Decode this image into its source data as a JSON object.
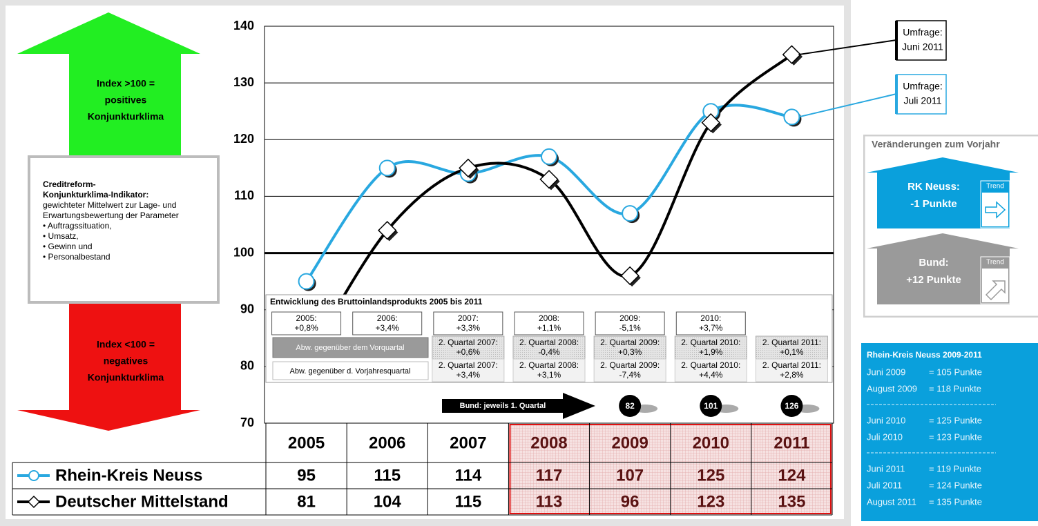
{
  "chart_data": {
    "type": "line",
    "categories": [
      "2005",
      "2006",
      "2007",
      "2008",
      "2009",
      "2010",
      "2011"
    ],
    "series": [
      {
        "name": "Rhein-Kreis Neuss",
        "color": "#29a8e0",
        "marker": "circle",
        "values": [
          95,
          115,
          114,
          117,
          107,
          125,
          124
        ]
      },
      {
        "name": "Deutscher Mittelstand",
        "color": "#000000",
        "marker": "diamond",
        "values": [
          81,
          104,
          115,
          113,
          96,
          123,
          135
        ]
      }
    ],
    "ylim": [
      70,
      140
    ],
    "yticks": [
      70,
      80,
      90,
      100,
      110,
      120,
      130,
      140
    ],
    "grid": true,
    "baseline": 100,
    "annotations": [
      {
        "lines": [
          "Umfrage:",
          "Juni 2011"
        ],
        "color": "#000000"
      },
      {
        "lines": [
          "Umfrage:",
          "Juli 2011"
        ],
        "color": "#29a8e0"
      }
    ]
  },
  "zones": {
    "positive": [
      "Index >100 =",
      "positives",
      "Konjunkturklima"
    ],
    "negative": [
      "Index <100 =",
      "negatives",
      "Konjunkturklima"
    ]
  },
  "info_box": {
    "title": [
      "Creditreform-",
      "Konjunkturklima-Indikator:"
    ],
    "lines": [
      "gewichteter Mittelwert zur Lage- und",
      "Erwartungsbewertung der Parameter",
      "• Auftragssituation,",
      "• Umsatz,",
      "• Gewinn und",
      "• Personalbestand"
    ]
  },
  "gdp": {
    "title": "Entwicklung des Bruttoinlandsprodukts 2005 bis 2011",
    "annual": [
      [
        "2005:",
        "+0,8%"
      ],
      [
        "2006:",
        "+3,4%"
      ],
      [
        "2007:",
        "+3,3%"
      ],
      [
        "2008:",
        "+1,1%"
      ],
      [
        "2009:",
        "-5,1%"
      ],
      [
        "2010:",
        "+3,7%"
      ]
    ],
    "quarter_label": "Abw. gegenüber dem Vorquartal",
    "yoy_label": "Abw. gegenüber d. Vorjahresquartal",
    "quarter": [
      [
        "2. Quartal 2007:",
        "+0,6%"
      ],
      [
        "2. Quartal 2008:",
        "-0,4%"
      ],
      [
        "2. Quartal 2009:",
        "+0,3%"
      ],
      [
        "2. Quartal 2010:",
        "+1,9%"
      ],
      [
        "2. Quartal 2011:",
        "+0,1%"
      ]
    ],
    "yoy": [
      [
        "2. Quartal 2007:",
        "+3,4%"
      ],
      [
        "2. Quartal 2008:",
        "+3,1%"
      ],
      [
        "2. Quartal 2009:",
        "-7,4%"
      ],
      [
        "2. Quartal 2010:",
        "+4,4%"
      ],
      [
        "2. Quartal 2011:",
        "+2,8%"
      ]
    ]
  },
  "bund": {
    "label": "Bund: jeweils 1. Quartal",
    "values": [
      82,
      101,
      126
    ]
  },
  "changes": {
    "title": "Veränderungen zum Vorjahr",
    "items": [
      {
        "lines": [
          "RK Neuss:",
          "-1 Punkte"
        ],
        "trend": "Trend",
        "color": "#0aa0dc"
      },
      {
        "lines": [
          "Bund:",
          "+12 Punkte"
        ],
        "trend": "Trend",
        "color": "#9a9a9a"
      }
    ]
  },
  "survey_box": {
    "title": "Rhein-Kreis Neuss 2009-2011",
    "groups": [
      [
        [
          "Juni 2009",
          "= 105 Punkte"
        ],
        [
          "August 2009",
          "= 118 Punkte"
        ]
      ],
      [
        [
          "Juni 2010",
          "= 125 Punkte"
        ],
        [
          "Juli 2010",
          "= 123 Punkte"
        ]
      ],
      [
        [
          "Juni 2011",
          "= 119 Punkte"
        ],
        [
          "Juli 2011",
          "= 124 Punkte"
        ],
        [
          "August 2011",
          "= 135 Punkte"
        ]
      ]
    ]
  }
}
